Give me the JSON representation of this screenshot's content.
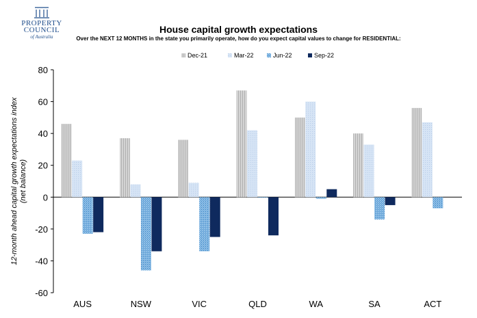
{
  "logo": {
    "line1": "PROPERTY",
    "line2": "COUNCIL",
    "line3": "of Australia"
  },
  "chart_data": {
    "type": "bar",
    "title": "House capital growth expectations",
    "subtitle": "Over the NEXT 12 MONTHS in the state you primarily operate, how do you expect capital values to change for RESIDENTIAL:",
    "ylabel": "12-month ahead capital growth expectations index (net balance)",
    "xlabel": "",
    "ylim": [
      -60,
      80
    ],
    "yticks": [
      -60,
      -40,
      -20,
      0,
      20,
      40,
      60,
      80
    ],
    "categories": [
      "AUS",
      "NSW",
      "VIC",
      "QLD",
      "WA",
      "SA",
      "ACT"
    ],
    "legend_position": "top",
    "grid": false,
    "series": [
      {
        "name": "Dec-21",
        "color": "#c8c8c8",
        "values": [
          46,
          37,
          36,
          67,
          50,
          40,
          56
        ]
      },
      {
        "name": "Mar-22",
        "color": "#c6d9f1",
        "values": [
          23,
          8,
          9,
          42,
          60,
          33,
          47
        ]
      },
      {
        "name": "Jun-22",
        "color": "#6fa8dc",
        "values": [
          -23,
          -46,
          -34,
          0,
          -1,
          -14,
          -7
        ]
      },
      {
        "name": "Sep-22",
        "color": "#0f2a5e",
        "values": [
          -22,
          -34,
          -25,
          -24,
          5,
          -5,
          null
        ]
      }
    ]
  }
}
